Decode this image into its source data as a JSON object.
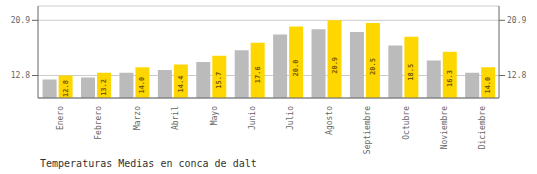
{
  "chart_data": {
    "type": "bar",
    "title": "Temperaturas Medias en conca de dalt",
    "categories": [
      "Enero",
      "Febrero",
      "Marzo",
      "Abril",
      "Mayo",
      "Junio",
      "Julio",
      "Agosto",
      "Septiembre",
      "Octubre",
      "Noviembre",
      "Diciembre"
    ],
    "series": [
      {
        "color": "#BBBBBB",
        "values": [
          12.2,
          12.5,
          13.2,
          13.6,
          14.8,
          16.5,
          18.8,
          19.6,
          19.2,
          17.2,
          15.0,
          13.2
        ]
      },
      {
        "color": "#FFD700",
        "values": [
          12.8,
          13.2,
          14.0,
          14.4,
          15.7,
          17.6,
          20.0,
          20.9,
          20.5,
          18.5,
          16.3,
          14.0
        ],
        "data_labels": true,
        "value_labels": [
          "12.8",
          "13.2",
          "14.0",
          "14.4",
          "15.7",
          "17.6",
          "20.0",
          "20.9",
          "20.5",
          "18.5",
          "16.3",
          "14.0"
        ]
      }
    ],
    "ylim": [
      9.5,
      23.0
    ],
    "yticks": [
      12.8,
      20.9
    ],
    "y2lim": [
      9.5,
      23.0
    ],
    "y2ticks": [
      12.8,
      20.9
    ],
    "grid": true
  }
}
